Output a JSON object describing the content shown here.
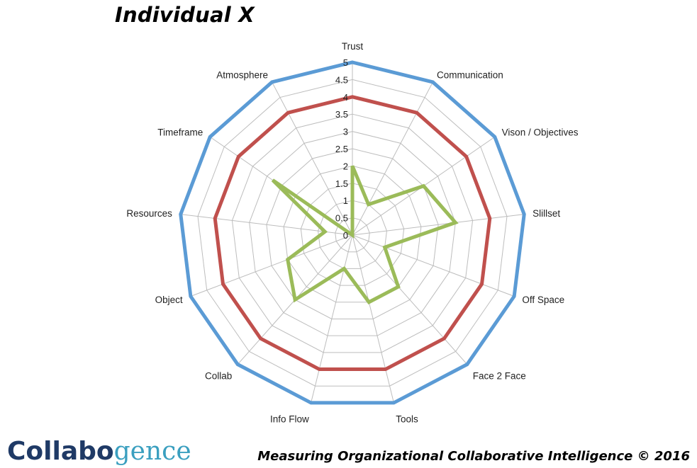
{
  "title": "Individual X",
  "footer": {
    "logo_part1": "Collabo",
    "logo_part2": "gence",
    "tagline": "Measuring Organizational Collaborative Intelligence  © 2016"
  },
  "chart_data": {
    "type": "radar",
    "categories": [
      "Trust",
      "Communication",
      "Vison / Objectives",
      "Slillset",
      "Off Space",
      "Face 2 Face",
      "Tools",
      "Info Flow",
      "Collab",
      "Object",
      "Resources",
      "Timeframe",
      "Atmosphere"
    ],
    "tick_labels": [
      "0",
      "0.5",
      "1",
      "1.5",
      "2",
      "2.5",
      "3",
      "3.5",
      "4",
      "4.5",
      "5"
    ],
    "range": [
      0,
      5
    ],
    "grid": true,
    "series": [
      {
        "color": "#5b9bd5",
        "values": [
          5,
          5,
          5,
          5,
          5,
          5,
          5,
          5,
          5,
          5,
          5,
          5,
          5
        ]
      },
      {
        "color": "#c0504d",
        "values": [
          4,
          4,
          4,
          4,
          4,
          4,
          4,
          4,
          4,
          4,
          4,
          4,
          4
        ]
      },
      {
        "color": "#9bbb59",
        "values": [
          2,
          1,
          2.5,
          3,
          1,
          2,
          2,
          1,
          2.5,
          2,
          0.8,
          2.8,
          0
        ]
      }
    ]
  }
}
